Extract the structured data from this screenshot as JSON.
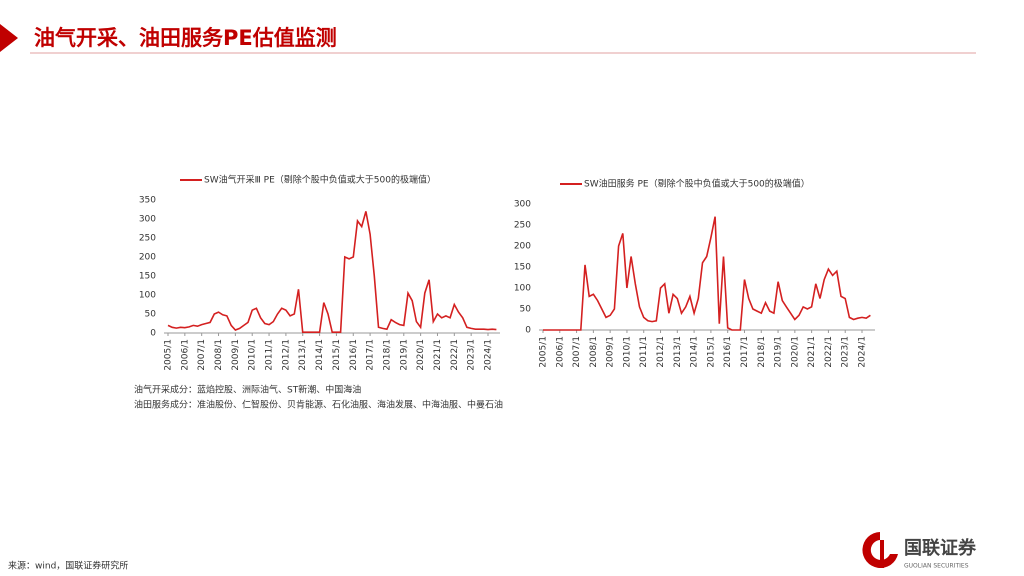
{
  "header": {
    "title": "油气开采、油田服务PE估值监测"
  },
  "chart_data": [
    {
      "type": "line",
      "categories": [
        "2005/1",
        null,
        null,
        null,
        "2006/1",
        null,
        null,
        null,
        "2007/1",
        null,
        null,
        null,
        "2008/1",
        null,
        null,
        null,
        "2009/1",
        null,
        null,
        null,
        "2010/1",
        null,
        null,
        null,
        "2011/1",
        null,
        null,
        null,
        "2012/1",
        null,
        null,
        null,
        "2013/1",
        null,
        null,
        null,
        "2014/1",
        null,
        null,
        null,
        "2015/1",
        null,
        null,
        null,
        "2016/1",
        null,
        null,
        null,
        "2017/1",
        null,
        null,
        null,
        "2018/1",
        null,
        null,
        null,
        "2019/1",
        null,
        null,
        null,
        "2020/1",
        null,
        null,
        null,
        "2021/1",
        null,
        null,
        null,
        "2022/1",
        null,
        null,
        null,
        "2023/1",
        null,
        null,
        null,
        "2024/1",
        null,
        null
      ],
      "series": [
        {
          "name": "SW油气开采Ⅲ PE（剔除个股中负值或大于500的极端值）",
          "color": "#d42020",
          "values": [
            20,
            15,
            13,
            15,
            14,
            16,
            20,
            18,
            22,
            25,
            28,
            50,
            55,
            48,
            45,
            20,
            8,
            12,
            20,
            28,
            60,
            65,
            40,
            25,
            22,
            30,
            50,
            65,
            60,
            45,
            50,
            115,
            2,
            2,
            2,
            2,
            2,
            80,
            50,
            2,
            2,
            2,
            200,
            195,
            200,
            295,
            280,
            320,
            260,
            150,
            15,
            12,
            10,
            35,
            28,
            22,
            20,
            105,
            85,
            30,
            15,
            105,
            140,
            30,
            50,
            40,
            45,
            40,
            75,
            55,
            40,
            15,
            12,
            10,
            10,
            10,
            9,
            10,
            9
          ]
        }
      ],
      "ylim": [
        0,
        350
      ],
      "yticks": [
        0,
        50,
        100,
        150,
        200,
        250,
        300,
        350
      ]
    },
    {
      "type": "line",
      "categories": [
        "2005/1",
        null,
        null,
        null,
        "2006/1",
        null,
        null,
        null,
        "2007/1",
        null,
        null,
        null,
        "2008/1",
        null,
        null,
        null,
        "2009/1",
        null,
        null,
        null,
        "2010/1",
        null,
        null,
        null,
        "2011/1",
        null,
        null,
        null,
        "2012/1",
        null,
        null,
        null,
        "2013/1",
        null,
        null,
        null,
        "2014/1",
        null,
        null,
        null,
        "2015/1",
        null,
        null,
        null,
        "2016/1",
        null,
        null,
        null,
        "2017/1",
        null,
        null,
        null,
        "2018/1",
        null,
        null,
        null,
        "2019/1",
        null,
        null,
        null,
        "2020/1",
        null,
        null,
        null,
        "2021/1",
        null,
        null,
        null,
        "2022/1",
        null,
        null,
        null,
        "2023/1",
        null,
        null,
        null,
        "2024/1",
        null,
        null
      ],
      "series": [
        {
          "name": "SW油田服务 PE（剔除个股中负值或大于500的极端值）",
          "color": "#d42020",
          "values": [
            0,
            0,
            0,
            0,
            0,
            0,
            0,
            0,
            0,
            0,
            155,
            80,
            85,
            70,
            50,
            30,
            35,
            50,
            200,
            230,
            100,
            175,
            110,
            55,
            30,
            22,
            20,
            22,
            100,
            110,
            40,
            85,
            75,
            40,
            55,
            80,
            40,
            75,
            160,
            175,
            220,
            270,
            15,
            175,
            5,
            0,
            0,
            0,
            120,
            75,
            50,
            45,
            40,
            65,
            45,
            40,
            115,
            70,
            55,
            40,
            25,
            35,
            55,
            50,
            55,
            110,
            75,
            120,
            145,
            130,
            140,
            80,
            75,
            30,
            25,
            28,
            30,
            28,
            35
          ]
        }
      ],
      "ylim": [
        0,
        300
      ],
      "yticks": [
        0,
        50,
        100,
        150,
        200,
        250,
        300
      ]
    }
  ],
  "notes": [
    "油气开采成分：蓝焰控股、洲际油气、ST新潮、中国海油",
    "油田服务成分：准油股份、仁智股份、贝肯能源、石化油服、海油发展、中海油服、中曼石油"
  ],
  "source": "来源：wind，国联证券研究所",
  "logo": {
    "name": "国联证券",
    "sub": "GUOLIAN SECURITIES"
  }
}
